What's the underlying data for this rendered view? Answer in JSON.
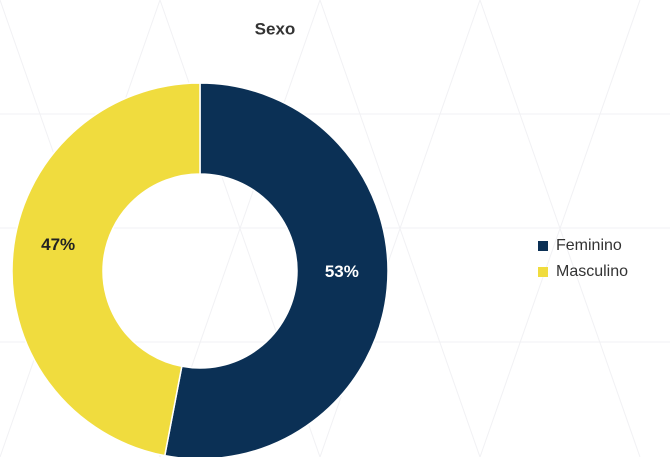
{
  "chart_data": {
    "type": "donut",
    "title": "Sexo",
    "categories": [
      "Feminino",
      "Masculino"
    ],
    "values": [
      53,
      47
    ],
    "value_labels": [
      "53%",
      "47%"
    ],
    "colors": [
      "#0b3055",
      "#f0dc3e"
    ]
  }
}
